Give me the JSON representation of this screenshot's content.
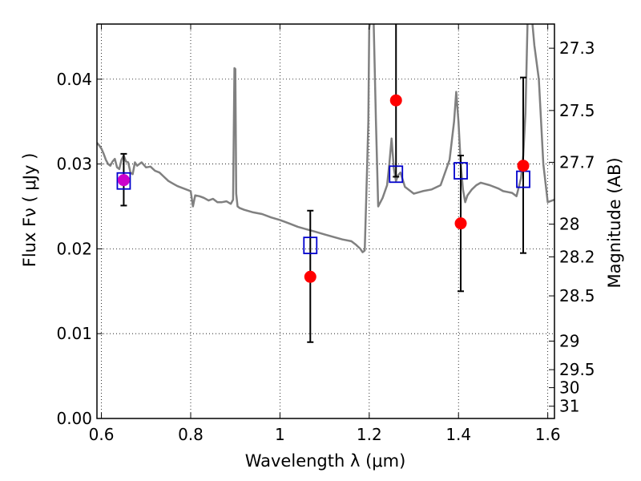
{
  "chart_data": {
    "type": "scatter",
    "xlabel": "Wavelength  λ (μm)",
    "ylabel": "Flux  Fν  ( μJy )",
    "y2label": "Magnitude (AB)",
    "xlim": [
      0.59,
      1.615
    ],
    "ylim": [
      0.0,
      0.0465
    ],
    "grid": true,
    "x_ticks": [
      {
        "value": 0.6,
        "label": "0.6"
      },
      {
        "value": 0.8,
        "label": "0.8"
      },
      {
        "value": 1.0,
        "label": "1"
      },
      {
        "value": 1.2,
        "label": "1.2"
      },
      {
        "value": 1.4,
        "label": "1.4"
      },
      {
        "value": 1.6,
        "label": "1.6"
      }
    ],
    "y_ticks": [
      {
        "value": 0.0,
        "label": "0.00"
      },
      {
        "value": 0.01,
        "label": "0.01"
      },
      {
        "value": 0.02,
        "label": "0.02"
      },
      {
        "value": 0.03,
        "label": "0.03"
      },
      {
        "value": 0.04,
        "label": "0.04"
      }
    ],
    "y2_ticks": [
      {
        "value": 27.3,
        "label": "27.3"
      },
      {
        "value": 27.5,
        "label": "27.5"
      },
      {
        "value": 27.7,
        "label": "27.7"
      },
      {
        "value": 28.0,
        "label": "28"
      },
      {
        "value": 28.2,
        "label": "28.2"
      },
      {
        "value": 28.5,
        "label": "28.5"
      },
      {
        "value": 29.0,
        "label": "29"
      },
      {
        "value": 29.5,
        "label": "29.5"
      },
      {
        "value": 30.0,
        "label": "30"
      },
      {
        "value": 31.0,
        "label": "31"
      }
    ],
    "model_spectrum": {
      "color": "#808080",
      "x": [
        0.59,
        0.595,
        0.6,
        0.605,
        0.61,
        0.615,
        0.62,
        0.625,
        0.63,
        0.635,
        0.64,
        0.645,
        0.65,
        0.655,
        0.66,
        0.665,
        0.67,
        0.675,
        0.68,
        0.69,
        0.7,
        0.71,
        0.72,
        0.73,
        0.74,
        0.75,
        0.76,
        0.77,
        0.78,
        0.79,
        0.8,
        0.805,
        0.81,
        0.82,
        0.83,
        0.84,
        0.85,
        0.86,
        0.87,
        0.88,
        0.89,
        0.895,
        0.898,
        0.9,
        0.902,
        0.905,
        0.91,
        0.92,
        0.94,
        0.96,
        0.98,
        1.0,
        1.02,
        1.04,
        1.06,
        1.08,
        1.1,
        1.12,
        1.14,
        1.16,
        1.17,
        1.18,
        1.185,
        1.19,
        1.195,
        1.198,
        1.2,
        1.205,
        1.21,
        1.215,
        1.22,
        1.23,
        1.24,
        1.245,
        1.25,
        1.255,
        1.26,
        1.265,
        1.27,
        1.28,
        1.3,
        1.32,
        1.34,
        1.36,
        1.38,
        1.39,
        1.395,
        1.4,
        1.405,
        1.41,
        1.415,
        1.42,
        1.43,
        1.44,
        1.45,
        1.47,
        1.49,
        1.5,
        1.52,
        1.53,
        1.54,
        1.545,
        1.55,
        1.555,
        1.56,
        1.565,
        1.57,
        1.58,
        1.59,
        1.6,
        1.615
      ],
      "y": [
        0.0325,
        0.0322,
        0.0318,
        0.0312,
        0.0305,
        0.03,
        0.0298,
        0.0303,
        0.0306,
        0.0296,
        0.0294,
        0.0305,
        0.031,
        0.0303,
        0.0302,
        0.029,
        0.0288,
        0.0302,
        0.0298,
        0.0302,
        0.0296,
        0.0297,
        0.0292,
        0.029,
        0.0285,
        0.028,
        0.0277,
        0.0274,
        0.0272,
        0.027,
        0.0268,
        0.025,
        0.0263,
        0.0262,
        0.026,
        0.0257,
        0.0259,
        0.0255,
        0.0255,
        0.0256,
        0.0253,
        0.0258,
        0.0413,
        0.0412,
        0.0265,
        0.025,
        0.0248,
        0.0246,
        0.0243,
        0.0241,
        0.0237,
        0.0234,
        0.023,
        0.0226,
        0.0223,
        0.022,
        0.0217,
        0.0214,
        0.0211,
        0.0209,
        0.0205,
        0.02,
        0.0196,
        0.0198,
        0.029,
        0.035,
        0.046,
        0.048,
        0.0465,
        0.035,
        0.025,
        0.026,
        0.0275,
        0.03,
        0.033,
        0.0295,
        0.028,
        0.0287,
        0.029,
        0.0273,
        0.0265,
        0.0268,
        0.027,
        0.0275,
        0.0305,
        0.035,
        0.0385,
        0.035,
        0.03,
        0.027,
        0.0255,
        0.0263,
        0.027,
        0.0275,
        0.0278,
        0.0275,
        0.0271,
        0.0268,
        0.0266,
        0.0262,
        0.0283,
        0.031,
        0.036,
        0.0475,
        0.048,
        0.047,
        0.044,
        0.04,
        0.03,
        0.0255,
        0.0258
      ]
    },
    "series": [
      {
        "marker": "open-square",
        "color": "#0000cc",
        "x": [
          0.65,
          1.068,
          1.26,
          1.405,
          1.545
        ],
        "y": [
          0.028,
          0.0204,
          0.0288,
          0.0292,
          0.0282
        ]
      },
      {
        "marker": "filled-circle",
        "color": "#ff0000",
        "x": [
          0.65,
          1.068,
          1.26,
          1.405,
          1.545
        ],
        "y": [
          0.0281,
          0.0167,
          0.0375,
          0.023,
          0.0298
        ],
        "err_low": [
          0.0251,
          0.009,
          0.0285,
          0.015,
          0.0195
        ],
        "err_high": [
          0.0312,
          0.0245,
          0.048,
          0.031,
          0.0402
        ]
      }
    ]
  }
}
